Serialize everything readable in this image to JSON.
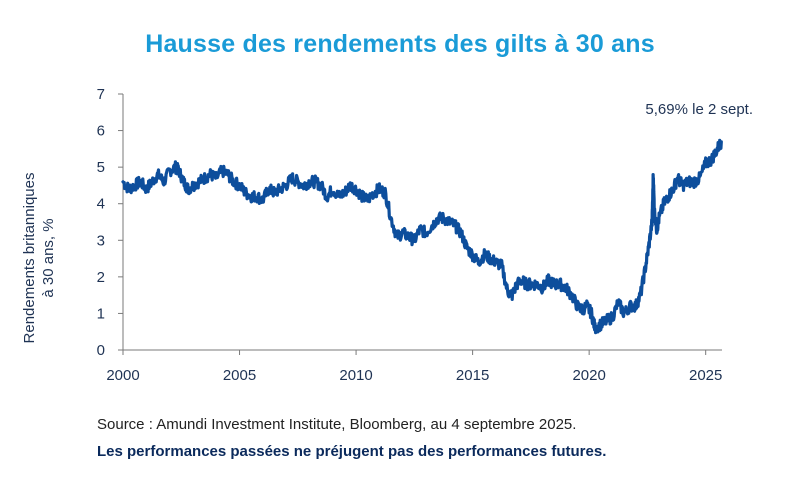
{
  "chart_data": {
    "type": "line",
    "title": "Hausse des rendements des gilts à 30 ans",
    "ylabel_lines": [
      "Rendements britanniques",
      "à 30 ans, %"
    ],
    "xlabel": "",
    "xlim": [
      2000,
      2025.7
    ],
    "ylim": [
      0,
      7
    ],
    "x_ticks": [
      "2000",
      "2005",
      "2010",
      "2015",
      "2020",
      "2025"
    ],
    "y_ticks": [
      "0",
      "1",
      "2",
      "3",
      "4",
      "5",
      "6",
      "7"
    ],
    "grid": false,
    "annotation": "5,69% le 2 sept.",
    "series": [
      {
        "name": "Rendements des gilts à 30 ans",
        "color": "#0d4e9c",
        "x": [
          2000.0,
          2000.25,
          2000.5,
          2000.75,
          2001.0,
          2001.25,
          2001.5,
          2001.75,
          2002.0,
          2002.25,
          2002.4,
          2002.6,
          2002.8,
          2003.0,
          2003.25,
          2003.5,
          2003.75,
          2004.0,
          2004.25,
          2004.5,
          2004.75,
          2005.0,
          2005.25,
          2005.5,
          2005.75,
          2006.0,
          2006.25,
          2006.5,
          2006.75,
          2007.0,
          2007.25,
          2007.5,
          2007.75,
          2008.0,
          2008.25,
          2008.5,
          2008.75,
          2009.0,
          2009.25,
          2009.5,
          2009.75,
          2010.0,
          2010.25,
          2010.5,
          2010.75,
          2011.0,
          2011.25,
          2011.5,
          2011.75,
          2012.0,
          2012.25,
          2012.5,
          2012.75,
          2013.0,
          2013.25,
          2013.5,
          2013.75,
          2014.0,
          2014.25,
          2014.5,
          2014.75,
          2015.0,
          2015.25,
          2015.5,
          2015.75,
          2016.0,
          2016.25,
          2016.5,
          2016.7,
          2016.9,
          2017.1,
          2017.3,
          2017.5,
          2017.75,
          2018.0,
          2018.25,
          2018.5,
          2018.75,
          2019.0,
          2019.25,
          2019.5,
          2019.7,
          2019.9,
          2020.1,
          2020.25,
          2020.5,
          2020.75,
          2021.0,
          2021.25,
          2021.5,
          2021.75,
          2022.0,
          2022.2,
          2022.4,
          2022.55,
          2022.7,
          2022.75,
          2022.8,
          2022.9,
          2023.0,
          2023.2,
          2023.4,
          2023.6,
          2023.8,
          2024.0,
          2024.25,
          2024.5,
          2024.75,
          2025.0,
          2025.25,
          2025.5,
          2025.67
        ],
        "values": [
          4.6,
          4.4,
          4.5,
          4.6,
          4.4,
          4.6,
          4.8,
          4.6,
          4.9,
          5.0,
          4.9,
          4.6,
          4.4,
          4.5,
          4.6,
          4.7,
          4.8,
          4.7,
          4.9,
          4.8,
          4.6,
          4.5,
          4.3,
          4.2,
          4.2,
          4.1,
          4.4,
          4.3,
          4.4,
          4.5,
          4.7,
          4.6,
          4.5,
          4.6,
          4.6,
          4.5,
          4.2,
          4.4,
          4.2,
          4.3,
          4.5,
          4.4,
          4.2,
          4.1,
          4.3,
          4.4,
          4.3,
          3.6,
          3.1,
          3.2,
          3.1,
          3.0,
          3.3,
          3.2,
          3.4,
          3.6,
          3.6,
          3.5,
          3.4,
          3.2,
          2.8,
          2.6,
          2.4,
          2.6,
          2.5,
          2.4,
          2.3,
          1.6,
          1.5,
          1.8,
          1.9,
          1.8,
          1.8,
          1.8,
          1.7,
          1.9,
          1.8,
          1.8,
          1.7,
          1.5,
          1.2,
          1.1,
          1.2,
          1.0,
          0.6,
          0.7,
          0.8,
          0.9,
          1.3,
          1.0,
          1.2,
          1.2,
          1.5,
          2.2,
          2.8,
          3.5,
          4.8,
          3.8,
          3.3,
          3.6,
          4.0,
          4.2,
          4.4,
          4.7,
          4.5,
          4.6,
          4.6,
          4.7,
          5.1,
          5.2,
          5.5,
          5.69
        ]
      }
    ]
  },
  "footer": {
    "source": "Source : Amundi Investment Institute, Bloomberg, au 4 septembre 2025.",
    "disclaimer": "Les performances passées ne préjugent pas des performances futures."
  }
}
